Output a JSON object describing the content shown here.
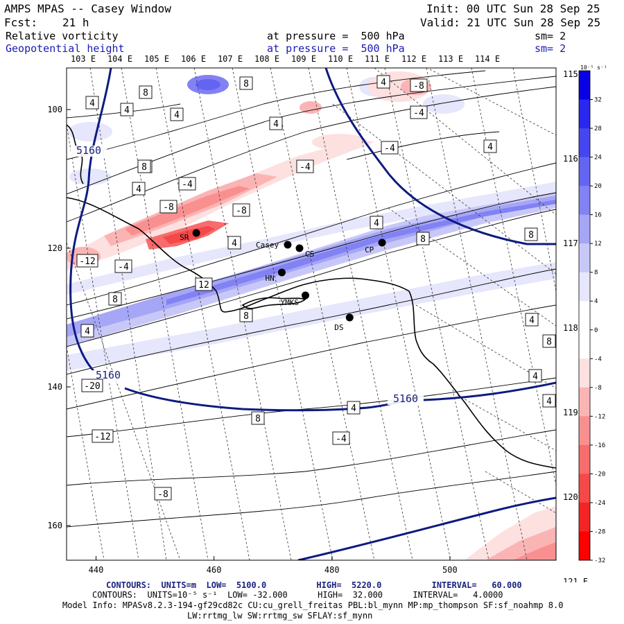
{
  "header": {
    "title": "AMPS MPAS -- Casey Window",
    "init": "Init: 00 UTC Sun 28 Sep 25",
    "fcst_label": "Fcst:",
    "fcst_value": "21 h",
    "valid": "Valid: 21 UTC Sun 28 Sep 25",
    "field1_name": "Relative vorticity",
    "field1_level": "at pressure =  500 hPa",
    "field1_sm": "sm= 2",
    "field2_name": "Geopotential height",
    "field2_level": "at pressure =  500 hPa",
    "field2_sm": "sm= 2"
  },
  "colors": {
    "positive_strong": "#ff2020",
    "negative_strong": "#1a1aff",
    "height_contour": "#0d1a80",
    "coast": "#000000"
  },
  "chart_data": {
    "type": "heatmap",
    "x_ticks": [
      440,
      460,
      480,
      500
    ],
    "y_ticks": [
      100,
      120,
      140,
      160
    ],
    "xlim": [
      435,
      518
    ],
    "ylim": [
      165,
      94
    ],
    "lon_labels_top": [
      "103 E",
      "104 E",
      "105 E",
      "106 E",
      "107 E",
      "108 E",
      "109 E",
      "110 E",
      "111 E",
      "112 E",
      "113 E",
      "114 E"
    ],
    "lon_labels_right": [
      "115 E",
      "116 E",
      "117 E",
      "118 E",
      "119 E",
      "120 E",
      "121 E"
    ],
    "colorbar": {
      "unit_label": "10⁻⁵ s⁻¹",
      "levels": [
        32,
        28,
        24,
        20,
        16,
        12,
        8,
        4,
        0,
        -4,
        -8,
        -12,
        -16,
        -20,
        -24,
        -28,
        -32
      ],
      "colors": [
        "#0a00e6",
        "#2828ee",
        "#4646f0",
        "#6464f2",
        "#8282f4",
        "#a6a6f6",
        "#c8c8f8",
        "#e6e6fc",
        "#ffffff",
        "#ffffff",
        "#fde0e0",
        "#fbb4b4",
        "#f99090",
        "#f76c6c",
        "#f54848",
        "#f32424",
        "#ff0000"
      ]
    },
    "stations": [
      {
        "name": "SR",
        "x": 457,
        "y": 117.8
      },
      {
        "name": "Casey",
        "x": 472.5,
        "y": 119.5
      },
      {
        "name": "CS",
        "x": 474.5,
        "y": 120
      },
      {
        "name": "HN",
        "x": 471.5,
        "y": 123.5
      },
      {
        "name": "YMKS",
        "x": 475.5,
        "y": 126.8
      },
      {
        "name": "CP",
        "x": 488.5,
        "y": 119.2
      },
      {
        "name": "DS",
        "x": 483,
        "y": 130
      }
    ],
    "height_labels": [
      "5160",
      "5160",
      "5160"
    ],
    "vorticity_labels": [
      "4",
      "8",
      "4",
      "4",
      "8",
      "4",
      "-4",
      "8",
      "4",
      "-8",
      "-4",
      "4",
      "-4",
      "8",
      "4",
      "-4",
      "-8",
      "-8",
      "8",
      "8",
      "-4",
      "-12",
      "4",
      "4",
      "12",
      "8",
      "8",
      "4",
      "4",
      "8",
      "4",
      "4",
      "8",
      "4",
      "-4",
      "-12",
      "-8",
      "-20"
    ]
  },
  "footer": {
    "line1": "CONTOURS:  UNITS=m  LOW=  5100.0          HIGH=  5220.0          INTERVAL=   60.000",
    "line2": "CONTOURS:  UNITS=10⁻⁵ s⁻¹  LOW= -32.000      HIGH=  32.000      INTERVAL=   4.0000",
    "line3": "Model Info: MPASv8.2.3-194-gf29cd82c CU:cu_grell_freitas PBL:bl_mynn MP:mp_thompson SF:sf_noahmp 8.0",
    "line4": "LW:rrtmg_lw SW:rrtmg_sw SFLAY:sf_mynn"
  }
}
